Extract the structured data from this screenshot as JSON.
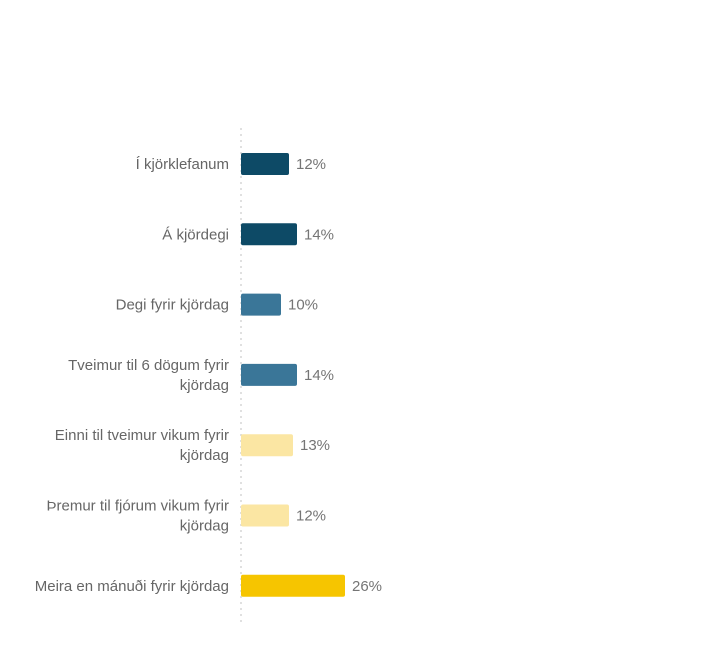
{
  "chart_data": {
    "type": "bar",
    "orientation": "horizontal",
    "categories": [
      [
        "Í kjörklefanum"
      ],
      [
        "Á kjördegi"
      ],
      [
        "Degi fyrir kjördag"
      ],
      [
        "Tveimur til 6 dögum fyrir",
        "kjördag"
      ],
      [
        "Einni til tveimur vikum fyrir",
        "kjördag"
      ],
      [
        "Þremur til fjórum vikum fyrir",
        "kjördag"
      ],
      [
        "Meira en mánuði fyrir kjördag"
      ]
    ],
    "values": [
      12,
      14,
      10,
      14,
      13,
      12,
      26
    ],
    "value_labels": [
      "12%",
      "14%",
      "10%",
      "14%",
      "13%",
      "12%",
      "26%"
    ],
    "colors": [
      "#0d4a66",
      "#0d4a66",
      "#3a7698",
      "#3a7698",
      "#fbe6a3",
      "#fbe6a3",
      "#f6c500"
    ],
    "title": "",
    "xlabel": "",
    "ylabel": "",
    "legend": "none",
    "grid": false,
    "baseline": "dotted"
  }
}
